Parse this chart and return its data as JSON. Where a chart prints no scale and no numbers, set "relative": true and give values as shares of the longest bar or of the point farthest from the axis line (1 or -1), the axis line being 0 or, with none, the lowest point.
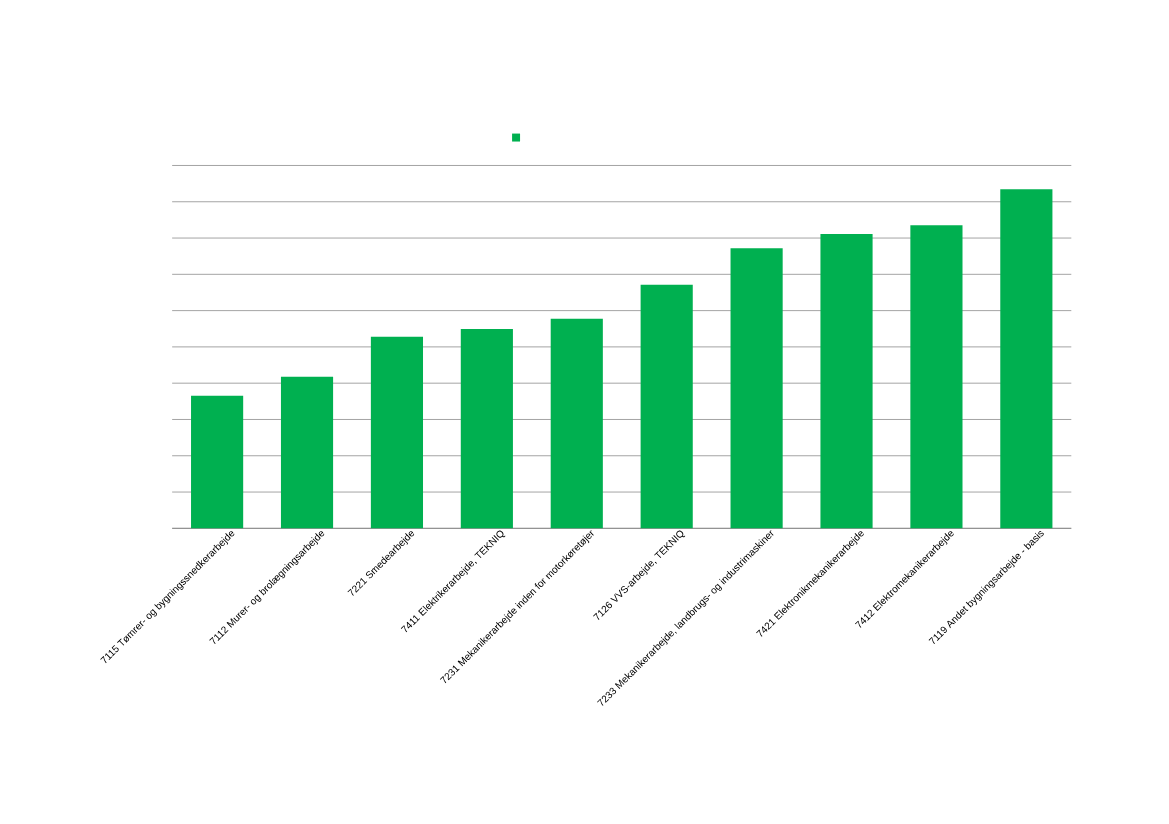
{
  "chart_data": {
    "type": "bar",
    "relative": true,
    "categories": [
      "7115 Tømrer- og bygningssnedkerarbejde",
      "7112  Murer- og brolægningsarbejde",
      "7221 Smedearbejde",
      "7411 Elektrikerarbejde, TEKNIQ",
      "7231 Mekanikerarbejde inden for motorkøretøjer",
      "7126 VVS-arbejde, TEKNIQ",
      "7233  Mekanikerarbejde, landbrugs- og industrimaskiner",
      "7421  Elektronikmekanikerarbejde",
      "7412 Elektromekanikerarbejde",
      "7119  Andet bygningsarbejde - basis"
    ],
    "values": [
      0.391,
      0.447,
      0.565,
      0.588,
      0.618,
      0.718,
      0.826,
      0.868,
      0.894,
      1
    ],
    "color": "#00b050",
    "grid": "y",
    "tick_labels": "x"
  }
}
